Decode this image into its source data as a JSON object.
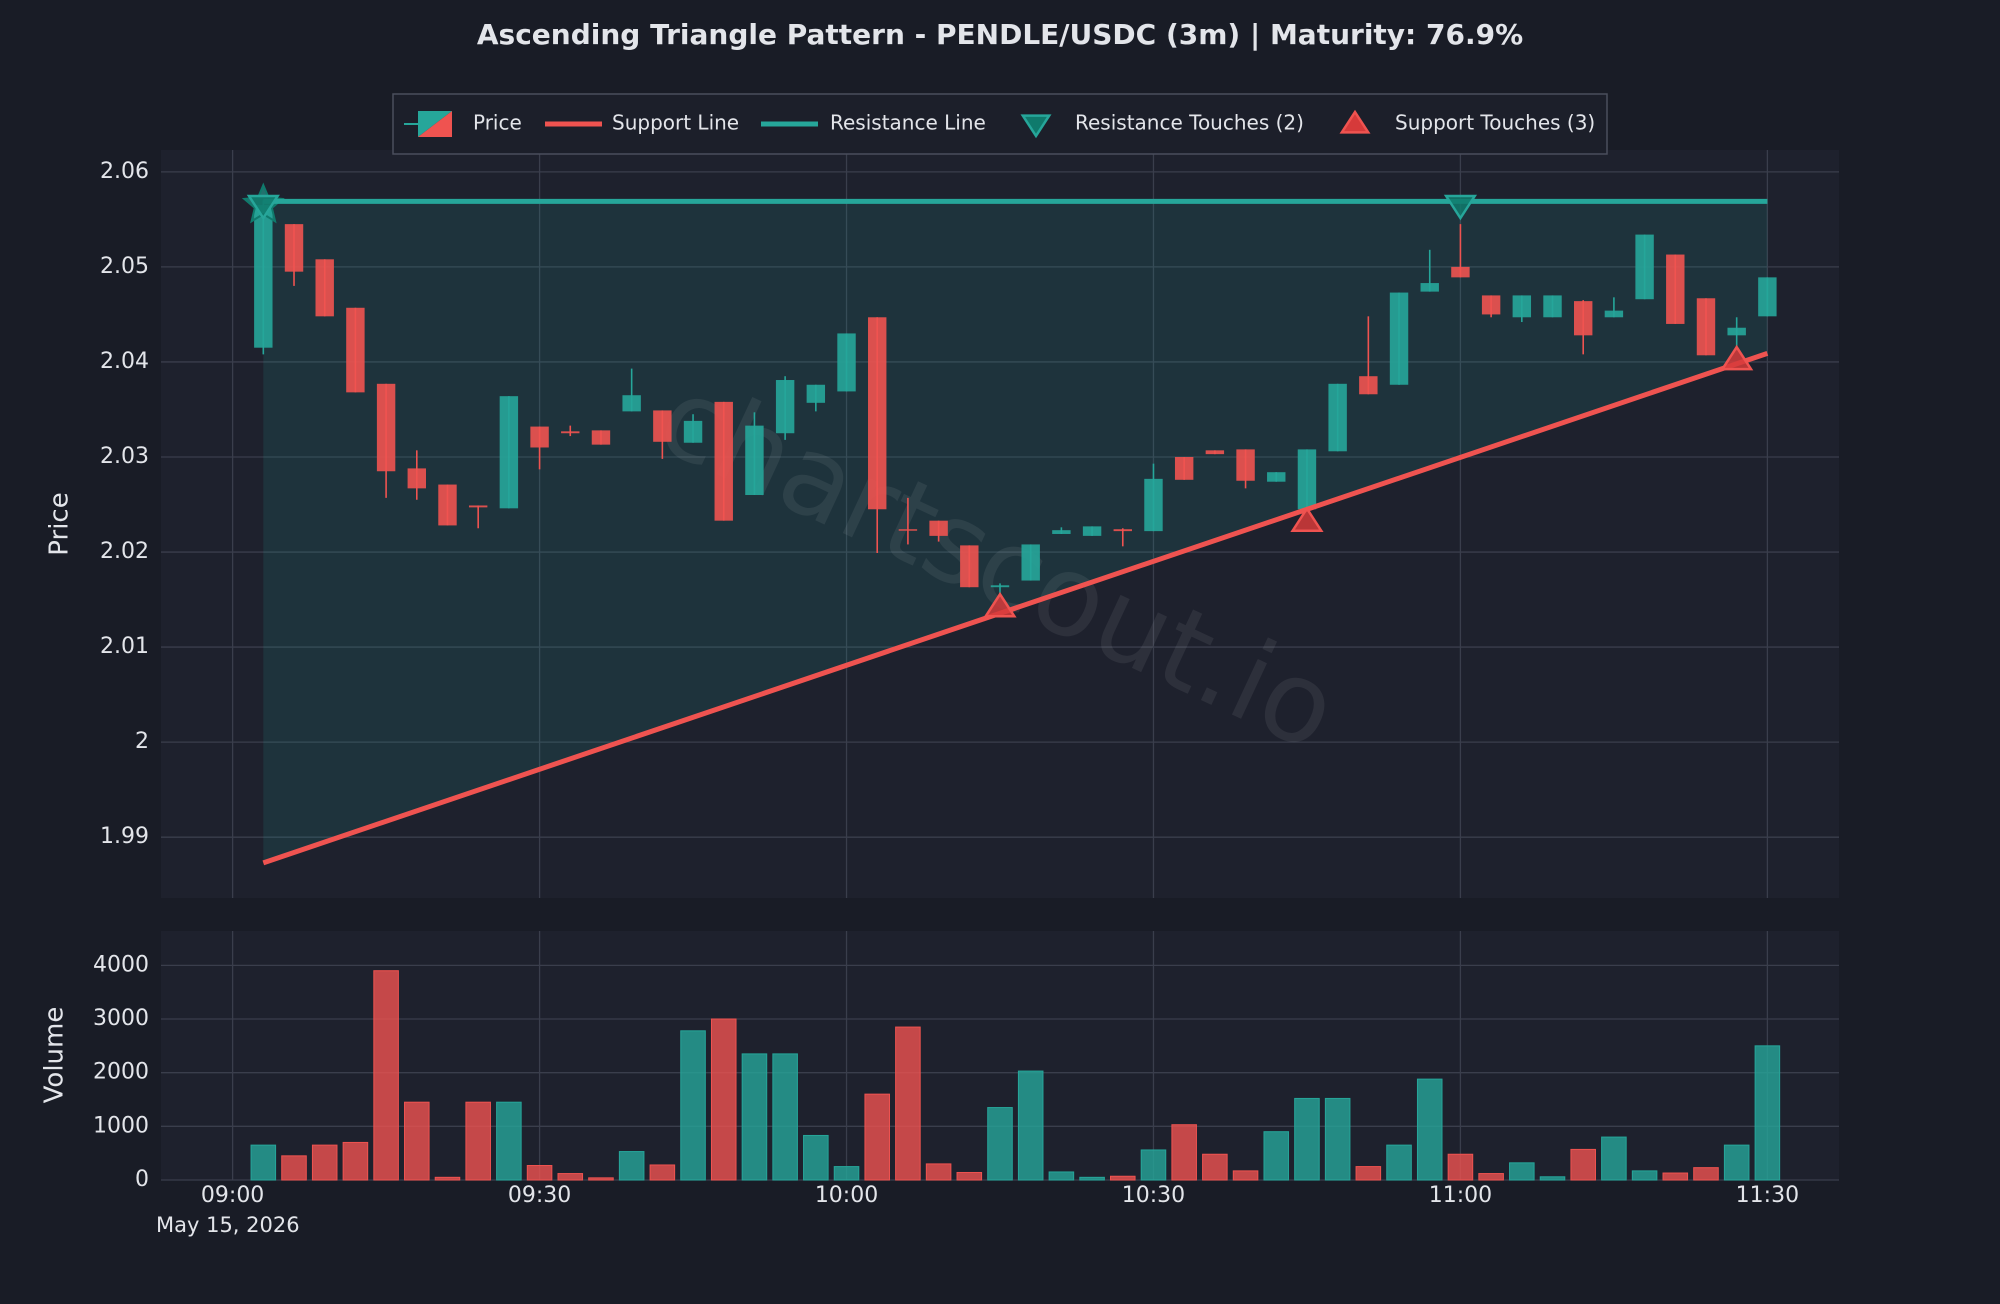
{
  "chart_data": [
    {
      "type": "candlestick",
      "title": "Ascending Triangle Pattern - PENDLE/USDC (3m) | Maturity: 76.9%",
      "name": "Price",
      "ylabel": "Price",
      "watermark": "chartscout.io",
      "up_color": "#26a69a",
      "down_color": "#ef5350",
      "grid": true,
      "legend": "upper center",
      "xlim": [
        "08:53",
        "11:37"
      ],
      "ylim": [
        1.9836,
        2.0623
      ],
      "yticks": [
        1.99,
        2,
        2.01,
        2.02,
        2.03,
        2.04,
        2.05,
        2.06
      ],
      "x": [
        "09:03",
        "09:06",
        "09:09",
        "09:12",
        "09:15",
        "09:18",
        "09:21",
        "09:24",
        "09:27",
        "09:30",
        "09:33",
        "09:36",
        "09:39",
        "09:42",
        "09:45",
        "09:48",
        "09:51",
        "09:54",
        "09:57",
        "10:00",
        "10:03",
        "10:06",
        "10:09",
        "10:12",
        "10:15",
        "10:18",
        "10:21",
        "10:24",
        "10:27",
        "10:30",
        "10:33",
        "10:36",
        "10:39",
        "10:42",
        "10:45",
        "10:48",
        "10:51",
        "10:54",
        "10:57",
        "11:00",
        "11:03",
        "11:06",
        "11:09",
        "11:12",
        "11:15",
        "11:18",
        "11:21",
        "11:24",
        "11:27",
        "11:30"
      ],
      "open": [
        2.0415,
        2.0545,
        2.0508,
        2.0457,
        2.0377,
        2.0288,
        2.0271,
        2.0249,
        2.0246,
        2.0332,
        2.0327,
        2.0328,
        2.0348,
        2.0349,
        2.0315,
        2.0358,
        2.026,
        2.0325,
        2.0357,
        2.0369,
        2.0447,
        2.0224,
        2.0233,
        2.0207,
        2.0163,
        2.017,
        2.0219,
        2.0217,
        2.0224,
        2.0222,
        2.03,
        2.0307,
        2.0308,
        2.0274,
        2.0245,
        2.0306,
        2.0385,
        2.0376,
        2.0474,
        2.05,
        2.047,
        2.0447,
        2.0447,
        2.0464,
        2.0447,
        2.0466,
        2.0513,
        2.0467,
        2.0428,
        2.0448
      ],
      "high": [
        2.057,
        2.0545,
        2.0508,
        2.0457,
        2.0377,
        2.0307,
        2.0271,
        2.0249,
        2.0364,
        2.0332,
        2.0333,
        2.0328,
        2.0393,
        2.0349,
        2.0345,
        2.0358,
        2.0347,
        2.0385,
        2.0376,
        2.043,
        2.0447,
        2.0257,
        2.0233,
        2.0207,
        2.0167,
        2.0208,
        2.0226,
        2.0227,
        2.0225,
        2.0293,
        2.03,
        2.0307,
        2.0308,
        2.0284,
        2.0308,
        2.0377,
        2.0448,
        2.0473,
        2.0518,
        2.0545,
        2.047,
        2.047,
        2.047,
        2.0465,
        2.0468,
        2.0534,
        2.0513,
        2.0467,
        2.0447,
        2.0489
      ],
      "low": [
        2.0408,
        2.048,
        2.0448,
        2.0368,
        2.0257,
        2.0255,
        2.0228,
        2.0225,
        2.0246,
        2.0287,
        2.0322,
        2.0313,
        2.0348,
        2.0298,
        2.0315,
        2.0233,
        2.026,
        2.0318,
        2.0348,
        2.0369,
        2.0199,
        2.0208,
        2.0211,
        2.0163,
        2.0155,
        2.017,
        2.0219,
        2.0217,
        2.0206,
        2.0222,
        2.0276,
        2.0303,
        2.0267,
        2.0274,
        2.0245,
        2.0306,
        2.0366,
        2.0376,
        2.0474,
        2.0489,
        2.0447,
        2.0442,
        2.0447,
        2.0408,
        2.0447,
        2.0466,
        2.044,
        2.0407,
        2.0412,
        2.0448
      ],
      "close": [
        2.0565,
        2.0495,
        2.0448,
        2.0368,
        2.0285,
        2.0267,
        2.0228,
        2.0247,
        2.0364,
        2.031,
        2.0325,
        2.0313,
        2.0365,
        2.0316,
        2.0338,
        2.0233,
        2.0333,
        2.0381,
        2.0376,
        2.043,
        2.0245,
        2.0223,
        2.0217,
        2.0163,
        2.0165,
        2.0208,
        2.0223,
        2.0227,
        2.0222,
        2.0277,
        2.0276,
        2.0303,
        2.0275,
        2.0284,
        2.0308,
        2.0377,
        2.0366,
        2.0473,
        2.0483,
        2.0489,
        2.045,
        2.047,
        2.047,
        2.0428,
        2.0454,
        2.0534,
        2.044,
        2.0407,
        2.0436,
        2.0489
      ],
      "pattern_start": {
        "x": "09:03",
        "value": 2.0565,
        "color": "#26a69a"
      },
      "series": [
        {
          "name": "Support Line",
          "kind": "line",
          "color": "#ef5350",
          "x": [
            "09:03",
            "11:30"
          ],
          "values": [
            1.9873,
            2.0409
          ]
        },
        {
          "name": "Resistance Line",
          "kind": "line",
          "color": "#26a69a",
          "x": [
            "09:03",
            "11:30"
          ],
          "values": [
            2.0569,
            2.0569
          ]
        },
        {
          "name": "Resistance Touches (2)",
          "kind": "down-marker",
          "color": "#0f7a6c",
          "x": [
            "09:03",
            "11:00"
          ],
          "values": [
            2.0565,
            2.0565
          ]
        },
        {
          "name": "Support Touches (3)",
          "kind": "up-marker",
          "color": "#d63a3a",
          "x": [
            "10:15",
            "10:45",
            "11:27"
          ],
          "values": [
            2.0142,
            2.0232,
            2.0402
          ]
        }
      ]
    },
    {
      "type": "bar",
      "ylabel": "Volume",
      "date_label": "May 15, 2026",
      "ylim": [
        0,
        4640
      ],
      "yticks": [
        0,
        1000,
        2000,
        3000,
        4000
      ],
      "xticks": [
        "09:00",
        "09:30",
        "10:00",
        "10:30",
        "11:00",
        "11:30"
      ],
      "values": [
        650,
        450,
        650,
        700,
        3900,
        1450,
        50,
        1450,
        1450,
        270,
        120,
        40,
        530,
        280,
        2780,
        3000,
        2350,
        2350,
        830,
        250,
        1600,
        2850,
        300,
        140,
        1350,
        2030,
        150,
        50,
        70,
        560,
        1030,
        480,
        170,
        900,
        1520,
        1520,
        250,
        650,
        1880,
        480,
        120,
        320,
        60,
        570,
        800,
        170,
        130,
        230,
        650,
        2500
      ]
    }
  ]
}
